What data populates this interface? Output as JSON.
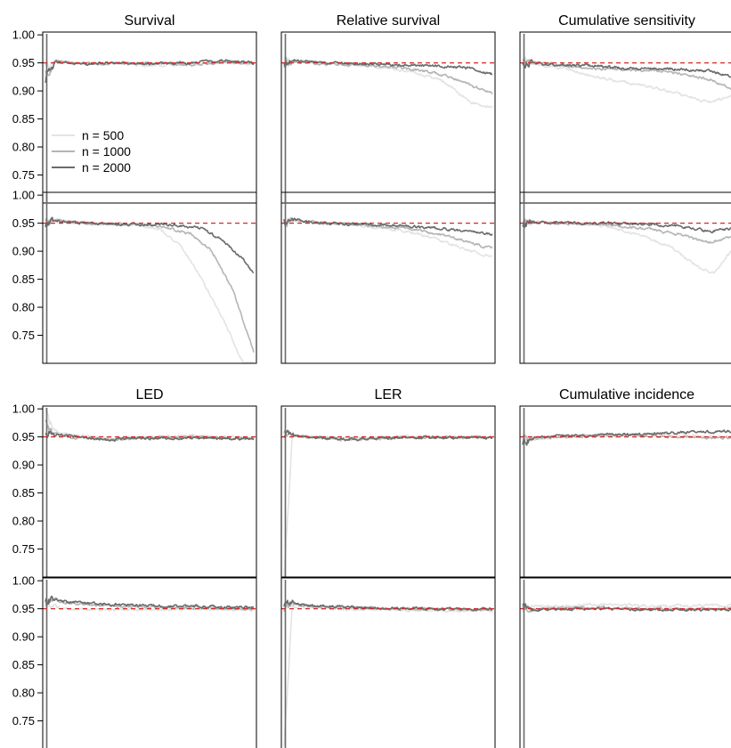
{
  "chart_data": {
    "type": "line",
    "layout": "4x3 panel grid",
    "yticks": [
      "1.00",
      "0.95",
      "0.90",
      "0.85",
      "0.80",
      "0.75"
    ],
    "ylim": [
      0.7,
      1.005
    ],
    "xlim": [
      0,
      1
    ],
    "reference_line": {
      "y": 0.95,
      "color": "#d62728",
      "style": "dashed"
    },
    "legend": {
      "panel": 0,
      "placement": "lower-left",
      "entries": [
        {
          "label": "n = 500",
          "color": "#e3e3e3"
        },
        {
          "label": "n = 1000",
          "color": "#b5b5b5"
        },
        {
          "label": "n = 2000",
          "color": "#6b6b6b"
        }
      ]
    },
    "panels": [
      {
        "row": 0,
        "col": 0,
        "title": "Survival",
        "series": [
          {
            "name": "n = 500",
            "color": "#e3e3e3",
            "x": [
              0,
              0.05,
              0.15,
              0.3,
              0.5,
              0.7,
              0.85,
              1.0
            ],
            "y": [
              0.94,
              0.955,
              0.948,
              0.95,
              0.945,
              0.948,
              0.95,
              0.948
            ]
          },
          {
            "name": "n = 1000",
            "color": "#b5b5b5",
            "x": [
              0,
              0.05,
              0.15,
              0.3,
              0.5,
              0.7,
              0.85,
              1.0
            ],
            "y": [
              0.93,
              0.952,
              0.95,
              0.948,
              0.95,
              0.946,
              0.952,
              0.95
            ]
          },
          {
            "name": "n = 2000",
            "color": "#6b6b6b",
            "x": [
              0,
              0.05,
              0.15,
              0.3,
              0.5,
              0.7,
              0.85,
              1.0
            ],
            "y": [
              0.92,
              0.952,
              0.948,
              0.95,
              0.948,
              0.95,
              0.955,
              0.95
            ]
          }
        ]
      },
      {
        "row": 0,
        "col": 1,
        "title": "Relative survival",
        "series": [
          {
            "name": "n = 500",
            "color": "#e3e3e3",
            "x": [
              0,
              0.05,
              0.2,
              0.4,
              0.6,
              0.75,
              0.9,
              1.0
            ],
            "y": [
              0.95,
              0.955,
              0.95,
              0.945,
              0.935,
              0.92,
              0.88,
              0.87
            ]
          },
          {
            "name": "n = 1000",
            "color": "#b5b5b5",
            "x": [
              0,
              0.05,
              0.2,
              0.4,
              0.6,
              0.75,
              0.9,
              1.0
            ],
            "y": [
              0.95,
              0.952,
              0.948,
              0.946,
              0.94,
              0.93,
              0.91,
              0.895
            ]
          },
          {
            "name": "n = 2000",
            "color": "#6b6b6b",
            "x": [
              0,
              0.05,
              0.2,
              0.4,
              0.6,
              0.75,
              0.9,
              1.0
            ],
            "y": [
              0.95,
              0.955,
              0.95,
              0.948,
              0.946,
              0.945,
              0.94,
              0.93
            ]
          }
        ]
      },
      {
        "row": 0,
        "col": 2,
        "title": "Cumulative sensitivity",
        "series": [
          {
            "name": "n = 500",
            "color": "#e3e3e3",
            "x": [
              0,
              0.05,
              0.2,
              0.35,
              0.5,
              0.7,
              0.9,
              1.0
            ],
            "y": [
              0.95,
              0.948,
              0.94,
              0.925,
              0.915,
              0.9,
              0.88,
              0.89
            ]
          },
          {
            "name": "n = 1000",
            "color": "#b5b5b5",
            "x": [
              0,
              0.05,
              0.2,
              0.35,
              0.5,
              0.7,
              0.9,
              1.0
            ],
            "y": [
              0.95,
              0.952,
              0.945,
              0.94,
              0.938,
              0.935,
              0.92,
              0.905
            ]
          },
          {
            "name": "n = 2000",
            "color": "#6b6b6b",
            "x": [
              0,
              0.05,
              0.2,
              0.35,
              0.5,
              0.7,
              0.9,
              1.0
            ],
            "y": [
              0.95,
              0.95,
              0.945,
              0.945,
              0.94,
              0.94,
              0.935,
              0.925
            ]
          }
        ]
      },
      {
        "row": 1,
        "col": 0,
        "title": "",
        "series": [
          {
            "name": "n = 500",
            "color": "#e3e3e3",
            "x": [
              0,
              0.05,
              0.2,
              0.4,
              0.55,
              0.65,
              0.75,
              0.85,
              0.95
            ],
            "y": [
              0.95,
              0.955,
              0.95,
              0.948,
              0.94,
              0.91,
              0.85,
              0.78,
              0.7
            ]
          },
          {
            "name": "n = 1000",
            "color": "#b5b5b5",
            "x": [
              0,
              0.05,
              0.2,
              0.4,
              0.55,
              0.7,
              0.8,
              0.9,
              1.0
            ],
            "y": [
              0.95,
              0.955,
              0.95,
              0.948,
              0.945,
              0.93,
              0.9,
              0.83,
              0.72
            ]
          },
          {
            "name": "n = 2000",
            "color": "#6b6b6b",
            "x": [
              0,
              0.05,
              0.2,
              0.4,
              0.6,
              0.75,
              0.85,
              0.95,
              1.0
            ],
            "y": [
              0.95,
              0.955,
              0.95,
              0.948,
              0.948,
              0.94,
              0.92,
              0.885,
              0.86
            ]
          }
        ]
      },
      {
        "row": 1,
        "col": 1,
        "title": "",
        "series": [
          {
            "name": "n = 500",
            "color": "#e3e3e3",
            "x": [
              0,
              0.05,
              0.2,
              0.4,
              0.6,
              0.75,
              0.9,
              1.0
            ],
            "y": [
              0.95,
              0.955,
              0.95,
              0.945,
              0.935,
              0.92,
              0.9,
              0.89
            ]
          },
          {
            "name": "n = 1000",
            "color": "#b5b5b5",
            "x": [
              0,
              0.05,
              0.2,
              0.4,
              0.6,
              0.75,
              0.9,
              1.0
            ],
            "y": [
              0.95,
              0.955,
              0.95,
              0.946,
              0.94,
              0.93,
              0.915,
              0.905
            ]
          },
          {
            "name": "n = 2000",
            "color": "#6b6b6b",
            "x": [
              0,
              0.05,
              0.2,
              0.4,
              0.6,
              0.75,
              0.9,
              1.0
            ],
            "y": [
              0.95,
              0.955,
              0.95,
              0.948,
              0.945,
              0.94,
              0.935,
              0.93
            ]
          }
        ]
      },
      {
        "row": 1,
        "col": 2,
        "title": "",
        "series": [
          {
            "name": "n = 500",
            "color": "#e3e3e3",
            "x": [
              0,
              0.05,
              0.2,
              0.4,
              0.55,
              0.7,
              0.85,
              0.92,
              1.0
            ],
            "y": [
              0.95,
              0.952,
              0.95,
              0.945,
              0.93,
              0.91,
              0.87,
              0.86,
              0.9
            ]
          },
          {
            "name": "n = 1000",
            "color": "#b5b5b5",
            "x": [
              0,
              0.05,
              0.2,
              0.4,
              0.6,
              0.75,
              0.9,
              1.0
            ],
            "y": [
              0.95,
              0.952,
              0.95,
              0.948,
              0.94,
              0.93,
              0.915,
              0.925
            ]
          },
          {
            "name": "n = 2000",
            "color": "#6b6b6b",
            "x": [
              0,
              0.05,
              0.2,
              0.4,
              0.6,
              0.75,
              0.9,
              1.0
            ],
            "y": [
              0.95,
              0.952,
              0.95,
              0.95,
              0.948,
              0.945,
              0.935,
              0.94
            ]
          }
        ]
      },
      {
        "row": 2,
        "col": 0,
        "title": "LED",
        "series": [
          {
            "name": "n = 500",
            "color": "#e3e3e3",
            "x": [
              0,
              0.04,
              0.1,
              0.3,
              0.5,
              0.7,
              1.0
            ],
            "y": [
              1.0,
              0.96,
              0.955,
              0.948,
              0.95,
              0.952,
              0.948
            ]
          },
          {
            "name": "n = 1000",
            "color": "#b5b5b5",
            "x": [
              0,
              0.04,
              0.1,
              0.3,
              0.5,
              0.7,
              1.0
            ],
            "y": [
              0.97,
              0.958,
              0.95,
              0.946,
              0.948,
              0.95,
              0.947
            ]
          },
          {
            "name": "n = 2000",
            "color": "#6b6b6b",
            "x": [
              0,
              0.04,
              0.1,
              0.3,
              0.5,
              0.7,
              1.0
            ],
            "y": [
              0.96,
              0.955,
              0.952,
              0.945,
              0.948,
              0.947,
              0.947
            ]
          }
        ]
      },
      {
        "row": 2,
        "col": 1,
        "title": "LER",
        "series": [
          {
            "name": "n = 500",
            "color": "#e3e3e3",
            "x": [
              0,
              0.04,
              0.1,
              0.3,
              0.5,
              0.7,
              1.0
            ],
            "y": [
              0.7,
              0.955,
              0.952,
              0.948,
              0.95,
              0.95,
              0.948
            ]
          },
          {
            "name": "n = 1000",
            "color": "#b5b5b5",
            "x": [
              0,
              0.04,
              0.1,
              0.3,
              0.5,
              0.7,
              1.0
            ],
            "y": [
              0.95,
              0.955,
              0.95,
              0.945,
              0.948,
              0.95,
              0.949
            ]
          },
          {
            "name": "n = 2000",
            "color": "#6b6b6b",
            "x": [
              0,
              0.04,
              0.1,
              0.3,
              0.5,
              0.7,
              1.0
            ],
            "y": [
              0.95,
              0.953,
              0.95,
              0.946,
              0.948,
              0.949,
              0.949
            ]
          }
        ]
      },
      {
        "row": 2,
        "col": 2,
        "title": "Cumulative incidence",
        "series": [
          {
            "name": "n = 500",
            "color": "#e3e3e3",
            "x": [
              0,
              0.05,
              0.2,
              0.4,
              0.6,
              0.8,
              1.0
            ],
            "y": [
              0.95,
              0.945,
              0.95,
              0.952,
              0.955,
              0.952,
              0.95
            ]
          },
          {
            "name": "n = 1000",
            "color": "#b5b5b5",
            "x": [
              0,
              0.05,
              0.2,
              0.4,
              0.6,
              0.8,
              1.0
            ],
            "y": [
              0.95,
              0.948,
              0.95,
              0.953,
              0.952,
              0.95,
              0.948
            ]
          },
          {
            "name": "n = 2000",
            "color": "#6b6b6b",
            "x": [
              0,
              0.05,
              0.2,
              0.4,
              0.6,
              0.8,
              1.0
            ],
            "y": [
              0.94,
              0.948,
              0.952,
              0.953,
              0.955,
              0.958,
              0.96
            ]
          }
        ]
      },
      {
        "row": 3,
        "col": 0,
        "title": "",
        "series": [
          {
            "name": "n = 500",
            "color": "#e3e3e3",
            "x": [
              0,
              0.04,
              0.1,
              0.3,
              0.5,
              0.7,
              1.0
            ],
            "y": [
              0.95,
              0.955,
              0.95,
              0.948,
              0.948,
              0.95,
              0.948
            ]
          },
          {
            "name": "n = 1000",
            "color": "#b5b5b5",
            "x": [
              0,
              0.04,
              0.1,
              0.3,
              0.5,
              0.7,
              1.0
            ],
            "y": [
              0.96,
              0.965,
              0.96,
              0.955,
              0.953,
              0.952,
              0.95
            ]
          },
          {
            "name": "n = 2000",
            "color": "#6b6b6b",
            "x": [
              0,
              0.04,
              0.1,
              0.3,
              0.5,
              0.7,
              1.0
            ],
            "y": [
              0.96,
              0.968,
              0.962,
              0.958,
              0.955,
              0.955,
              0.952
            ]
          }
        ]
      },
      {
        "row": 3,
        "col": 1,
        "title": "",
        "series": [
          {
            "name": "n = 500",
            "color": "#e3e3e3",
            "x": [
              0,
              0.04,
              0.1,
              0.3,
              0.5,
              0.7,
              1.0
            ],
            "y": [
              0.7,
              0.955,
              0.952,
              0.948,
              0.948,
              0.946,
              0.946
            ]
          },
          {
            "name": "n = 1000",
            "color": "#b5b5b5",
            "x": [
              0,
              0.04,
              0.1,
              0.3,
              0.5,
              0.7,
              1.0
            ],
            "y": [
              0.95,
              0.96,
              0.955,
              0.952,
              0.95,
              0.95,
              0.948
            ]
          },
          {
            "name": "n = 2000",
            "color": "#6b6b6b",
            "x": [
              0,
              0.04,
              0.1,
              0.3,
              0.5,
              0.7,
              1.0
            ],
            "y": [
              0.96,
              0.962,
              0.956,
              0.953,
              0.951,
              0.95,
              0.949
            ]
          }
        ]
      },
      {
        "row": 3,
        "col": 2,
        "title": "",
        "series": [
          {
            "name": "n = 500",
            "color": "#e3e3e3",
            "x": [
              0,
              0.05,
              0.2,
              0.4,
              0.6,
              0.8,
              1.0
            ],
            "y": [
              0.95,
              0.955,
              0.955,
              0.958,
              0.955,
              0.955,
              0.955
            ]
          },
          {
            "name": "n = 1000",
            "color": "#b5b5b5",
            "x": [
              0,
              0.05,
              0.2,
              0.4,
              0.6,
              0.8,
              1.0
            ],
            "y": [
              0.95,
              0.95,
              0.952,
              0.952,
              0.95,
              0.95,
              0.95
            ]
          },
          {
            "name": "n = 2000",
            "color": "#6b6b6b",
            "x": [
              0,
              0.05,
              0.2,
              0.4,
              0.6,
              0.8,
              1.0
            ],
            "y": [
              0.95,
              0.948,
              0.95,
              0.95,
              0.948,
              0.948,
              0.948
            ]
          }
        ]
      }
    ]
  }
}
